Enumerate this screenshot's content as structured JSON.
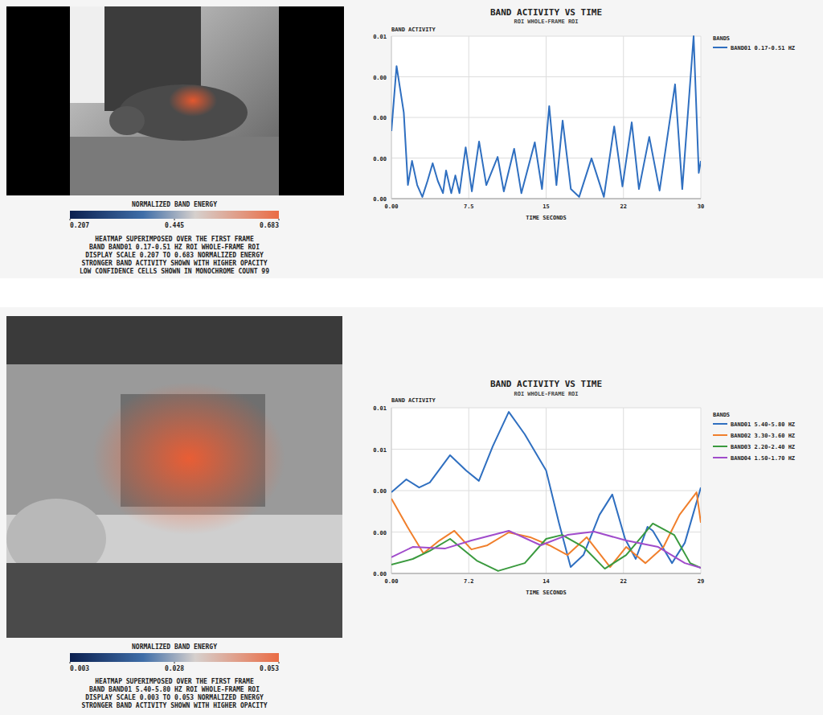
{
  "chart_data": [
    {
      "type": "line",
      "title": "BAND ACTIVITY VS TIME",
      "subtitle": "ROI WHOLE-FRAME ROI",
      "y_label": "BAND ACTIVITY",
      "x_label": "TIME SECONDS",
      "legend_title": "BANDS",
      "legend": "right",
      "grid": true,
      "xlim": [
        0,
        30
      ],
      "xticks": [
        {
          "value": 0,
          "label": "0.00"
        },
        7.5,
        15,
        {
          "value": 22.5,
          "label": "22"
        },
        30
      ],
      "ylim": [
        0,
        0.0056
      ],
      "yticks": [
        {
          "value": 0,
          "label": "0.00"
        },
        {
          "value": 0.0014,
          "label": "0.00"
        },
        {
          "value": 0.0028,
          "label": "0.00"
        },
        {
          "value": 0.0042,
          "label": "0.00"
        },
        {
          "value": 0.0056,
          "label": "0.01"
        }
      ],
      "series": [
        {
          "name": "BAND01 0.17-0.51 HZ",
          "color": "#2f6fc0",
          "x": [
            0,
            0.5,
            1.2,
            1.6,
            2,
            2.5,
            3,
            3.5,
            4,
            4.5,
            5,
            5.3,
            5.8,
            6.2,
            6.6,
            7.2,
            7.8,
            8.5,
            9.2,
            10.3,
            10.9,
            11.9,
            12.6,
            13.9,
            14.6,
            15.3,
            16,
            16.6,
            17.4,
            18.2,
            19.4,
            20.6,
            21.6,
            22.4,
            23.3,
            24,
            25,
            26,
            27.5,
            28.2,
            29.3,
            29.8,
            30
          ],
          "values": [
            0.00233,
            0.00457,
            0.00297,
            0.00047,
            0.0013,
            0.00047,
            6e-05,
            0.00061,
            0.00122,
            0.00061,
            0.00019,
            0.00097,
            0.00019,
            0.0008,
            0.00019,
            0.00177,
            0.00025,
            0.00197,
            0.00047,
            0.00144,
            0.00025,
            0.00172,
            0.00019,
            0.00194,
            0.00033,
            0.00319,
            0.00047,
            0.00269,
            0.00033,
            6e-05,
            0.00139,
            6e-05,
            0.00249,
            0.00042,
            0.00263,
            0.00033,
            0.00213,
            0.00028,
            0.00394,
            0.00033,
            0.0056,
            0.00089,
            0.0013
          ]
        }
      ],
      "colorbar": {
        "title": "NORMALIZED BAND ENERGY",
        "range": [
          0.207,
          0.683
        ],
        "ticks": [
          0.207,
          0.445,
          0.683
        ]
      },
      "annotations": [
        "HEATMAP SUPERIMPOSED OVER THE FIRST FRAME",
        "BAND BAND01 0.17-0.51 HZ ROI WHOLE-FRAME ROI",
        "DISPLAY SCALE 0.207 TO 0.683 NORMALIZED ENERGY",
        "STRONGER BAND ACTIVITY SHOWN WITH HIGHER OPACITY",
        "LOW CONFIDENCE CELLS SHOWN IN MONOCHROME COUNT 99"
      ]
    },
    {
      "type": "line",
      "title": "BAND ACTIVITY VS TIME",
      "subtitle": "ROI WHOLE-FRAME ROI",
      "y_label": "BAND ACTIVITY",
      "x_label": "TIME SECONDS",
      "legend_title": "BANDS",
      "legend": "right",
      "grid": true,
      "xlim": [
        0,
        29
      ],
      "xticks": [
        {
          "value": 0,
          "label": "0.00"
        },
        {
          "value": 7.25,
          "label": "7.2"
        },
        {
          "value": 14.5,
          "label": "14"
        },
        {
          "value": 21.75,
          "label": "22"
        },
        29
      ],
      "ylim": [
        0,
        0.008
      ],
      "yticks": [
        {
          "value": 0,
          "label": "0.00"
        },
        {
          "value": 0.002,
          "label": "0.00"
        },
        {
          "value": 0.004,
          "label": "0.00"
        },
        {
          "value": 0.006,
          "label": "0.01"
        },
        {
          "value": 0.008,
          "label": "0.01"
        }
      ],
      "series": [
        {
          "name": "BAND01 5.40-5.80 HZ",
          "color": "#2f6fc0",
          "x": [
            0,
            1.4,
            2.6,
            3.6,
            5.5,
            7,
            8.2,
            9.5,
            11,
            12.5,
            14.5,
            15.7,
            16.8,
            18,
            19.5,
            20.7,
            21.9,
            22.9,
            24,
            24.5,
            26.3,
            27.5,
            29
          ],
          "values": [
            0.00392,
            0.00454,
            0.00415,
            0.00439,
            0.00571,
            0.00497,
            0.00447,
            0.00614,
            0.0078,
            0.00672,
            0.00497,
            0.00245,
            0.00031,
            0.00089,
            0.00283,
            0.00381,
            0.00167,
            0.0007,
            0.00225,
            0.00206,
            0.0005,
            0.00148,
            0.00415
          ]
        },
        {
          "name": "BAND02 3.30-3.60 HZ",
          "color": "#f07f2c",
          "x": [
            0,
            1.5,
            3,
            4.5,
            5.9,
            7.5,
            9,
            11,
            13,
            14.8,
            16.5,
            18.3,
            20.5,
            22,
            23.8,
            25.5,
            27,
            28.6,
            29
          ],
          "values": [
            0.00361,
            0.00225,
            0.00097,
            0.00159,
            0.00206,
            0.00116,
            0.00136,
            0.00198,
            0.00175,
            0.00136,
            0.00089,
            0.00175,
            0.00031,
            0.00128,
            0.0005,
            0.00128,
            0.00283,
            0.00392,
            0.00245
          ]
        },
        {
          "name": "BAND03 2.20-2.40 HZ",
          "color": "#3a9a3e",
          "x": [
            0,
            2,
            3.6,
            5.5,
            8,
            10,
            12.5,
            14.5,
            16,
            18,
            20,
            22,
            24.5,
            26.5,
            28,
            29
          ],
          "values": [
            0.00043,
            0.0007,
            0.00109,
            0.00167,
            0.00062,
            0.00012,
            0.0005,
            0.00167,
            0.00186,
            0.00128,
            0.00023,
            0.00089,
            0.00241,
            0.00186,
            0.0005,
            0.00027
          ]
        },
        {
          "name": "BAND04 1.50-1.70 HZ",
          "color": "#a04ccb",
          "x": [
            0,
            2,
            5,
            7.5,
            11,
            14,
            16.5,
            19,
            22,
            25,
            27.5,
            29
          ],
          "values": [
            0.00078,
            0.00128,
            0.0012,
            0.00159,
            0.00206,
            0.00136,
            0.00186,
            0.00202,
            0.00159,
            0.00128,
            0.0005,
            0.00027
          ]
        }
      ],
      "colorbar": {
        "title": "NORMALIZED BAND ENERGY",
        "range": [
          0.003,
          0.053
        ],
        "ticks": [
          0.003,
          0.028,
          0.053
        ]
      },
      "annotations": [
        "HEATMAP SUPERIMPOSED OVER THE FIRST FRAME",
        "BAND BAND01 5.40-5.80 HZ ROI WHOLE-FRAME ROI",
        "DISPLAY SCALE 0.003 TO 0.053 NORMALIZED ENERGY",
        "STRONGER BAND ACTIVITY SHOWN WITH HIGHER OPACITY"
      ]
    }
  ]
}
